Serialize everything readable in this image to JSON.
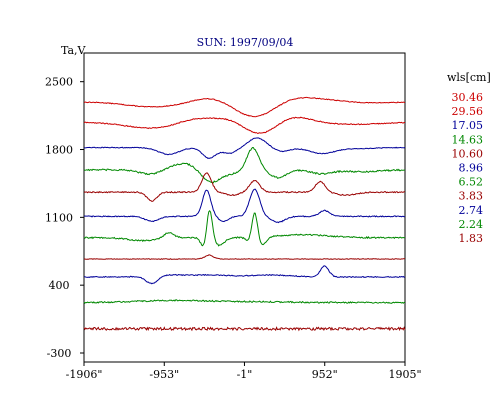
{
  "chart_data": {
    "type": "line",
    "title": "SUN: 1997/09/04",
    "ylabel": "Ta,V",
    "xlabel": "",
    "x_range": [
      -1906,
      1905
    ],
    "ylim": [
      -300,
      2600
    ],
    "x_ticks": [
      -1906,
      -953,
      -1,
      952,
      1905
    ],
    "x_tick_labels": [
      "-1906\"",
      "-953\"",
      "-1\"",
      "952\"",
      "1905\""
    ],
    "y_ticks": [
      -300,
      400,
      1100,
      1800,
      2500
    ],
    "y_tick_labels": [
      "-300",
      "400",
      "1100",
      "1800",
      "2500"
    ],
    "grid": false,
    "legend_title": "wls[cm]",
    "legend_position": "right",
    "series": [
      {
        "name": "30.46",
        "color": "#cc0000",
        "baseline": 2290,
        "noise": 4,
        "features": [
          [
            -1100,
            300,
            -50
          ],
          [
            -450,
            170,
            40
          ],
          [
            -50,
            130,
            -25
          ],
          [
            150,
            200,
            -140
          ],
          [
            600,
            180,
            30
          ],
          [
            900,
            260,
            30
          ],
          [
            1400,
            300,
            -10
          ]
        ]
      },
      {
        "name": "29.56",
        "color": "#cc0000",
        "baseline": 2080,
        "noise": 5,
        "features": [
          [
            -1100,
            300,
            -60
          ],
          [
            -550,
            220,
            50
          ],
          [
            -200,
            120,
            25
          ],
          [
            200,
            180,
            -120
          ],
          [
            580,
            200,
            60
          ],
          [
            1300,
            300,
            -20
          ]
        ]
      },
      {
        "name": "17.05",
        "color": "#000099",
        "baseline": 1820,
        "noise": 4,
        "features": [
          [
            -900,
            120,
            -70
          ],
          [
            -420,
            80,
            -110
          ],
          [
            -180,
            80,
            -60
          ],
          [
            150,
            100,
            100
          ],
          [
            450,
            90,
            -40
          ],
          [
            920,
            150,
            -60
          ],
          [
            1350,
            200,
            -10
          ]
        ]
      },
      {
        "name": "14.63",
        "color": "#008800",
        "baseline": 1590,
        "noise": 8,
        "features": [
          [
            -1100,
            140,
            -50
          ],
          [
            -700,
            200,
            70
          ],
          [
            -420,
            110,
            -140
          ],
          [
            -200,
            130,
            -40
          ],
          [
            100,
            70,
            230
          ],
          [
            400,
            100,
            -80
          ],
          [
            920,
            120,
            -40
          ],
          [
            1400,
            200,
            -20
          ]
        ]
      },
      {
        "name": "10.60",
        "color": "#990000",
        "baseline": 1360,
        "noise": 6,
        "features": [
          [
            -1100,
            60,
            -90
          ],
          [
            -450,
            55,
            200
          ],
          [
            -150,
            80,
            -30
          ],
          [
            120,
            60,
            120
          ],
          [
            900,
            60,
            110
          ],
          [
            1200,
            120,
            -30
          ]
        ]
      },
      {
        "name": "8.96",
        "color": "#000099",
        "baseline": 1110,
        "noise": 5,
        "features": [
          [
            -1100,
            80,
            -50
          ],
          [
            -450,
            50,
            270
          ],
          [
            -250,
            60,
            -50
          ],
          [
            120,
            60,
            280
          ],
          [
            400,
            80,
            -60
          ],
          [
            950,
            60,
            60
          ]
        ]
      },
      {
        "name": "6.52",
        "color": "#008800",
        "baseline": 890,
        "noise": 7,
        "features": [
          [
            -1200,
            180,
            -30
          ],
          [
            -900,
            60,
            60
          ],
          [
            -470,
            40,
            -140
          ],
          [
            -420,
            35,
            350
          ],
          [
            -300,
            60,
            -80
          ],
          [
            70,
            40,
            -60
          ],
          [
            120,
            35,
            300
          ],
          [
            200,
            50,
            -90
          ],
          [
            700,
            300,
            30
          ]
        ]
      },
      {
        "name": "3.83",
        "color": "#990000",
        "baseline": 670,
        "noise": 3,
        "features": [
          [
            -420,
            50,
            40
          ]
        ]
      },
      {
        "name": "2.74",
        "color": "#000099",
        "baseline": 485,
        "noise": 5,
        "features": [
          [
            -1100,
            70,
            -80
          ],
          [
            -900,
            200,
            20
          ],
          [
            -400,
            200,
            20
          ],
          [
            300,
            250,
            20
          ],
          [
            950,
            50,
            110
          ]
        ]
      },
      {
        "name": "2.24",
        "color": "#008800",
        "baseline": 220,
        "noise": 7,
        "features": [
          [
            -900,
            400,
            20
          ],
          [
            0,
            500,
            10
          ]
        ]
      },
      {
        "name": "1.83",
        "color": "#990000",
        "baseline": -50,
        "noise": 14,
        "features": []
      }
    ]
  }
}
